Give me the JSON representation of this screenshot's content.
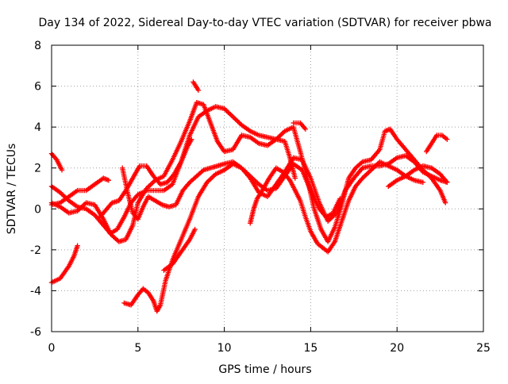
{
  "chart_data": {
    "type": "scatter",
    "title": "Day 134 of 2022, Sidereal Day-to-day VTEC variation (SDTVAR) for receiver pbwa",
    "xlabel": "GPS time / hours",
    "ylabel": "SDTVAR / TECUs",
    "xlim": [
      0,
      25
    ],
    "ylim": [
      -6,
      8
    ],
    "xticks": [
      "0",
      "5",
      "10",
      "15",
      "20",
      "25"
    ],
    "yticks": [
      "-6",
      "-4",
      "-2",
      "0",
      "2",
      "4",
      "6",
      "8"
    ],
    "grid": true,
    "marker": "+",
    "color": "#ff0000",
    "series": [
      {
        "points": [
          [
            0.0,
            2.7
          ],
          [
            0.3,
            2.4
          ],
          [
            0.6,
            1.9
          ]
        ]
      },
      {
        "points": [
          [
            0.0,
            -3.6
          ],
          [
            0.5,
            -3.4
          ],
          [
            1.0,
            -2.8
          ],
          [
            1.3,
            -2.3
          ],
          [
            1.5,
            -1.8
          ]
        ]
      },
      {
        "points": [
          [
            0.0,
            1.1
          ],
          [
            0.5,
            0.8
          ],
          [
            1.0,
            0.4
          ],
          [
            1.5,
            0.1
          ],
          [
            2.0,
            0.0
          ],
          [
            2.5,
            -0.3
          ],
          [
            3.0,
            -0.8
          ],
          [
            3.5,
            -1.3
          ],
          [
            3.9,
            -1.6
          ],
          [
            4.3,
            -1.5
          ],
          [
            4.7,
            -0.8
          ],
          [
            5.0,
            0.3
          ],
          [
            5.5,
            1.0
          ],
          [
            6.0,
            1.4
          ],
          [
            6.5,
            1.6
          ],
          [
            7.0,
            2.4
          ],
          [
            7.5,
            3.3
          ],
          [
            8.0,
            4.3
          ],
          [
            8.4,
            5.2
          ],
          [
            8.8,
            5.1
          ],
          [
            9.2,
            4.2
          ],
          [
            9.6,
            3.3
          ],
          [
            10.0,
            2.8
          ],
          [
            10.5,
            2.9
          ],
          [
            11.0,
            3.6
          ],
          [
            11.5,
            3.5
          ],
          [
            12.0,
            3.2
          ],
          [
            12.5,
            3.1
          ],
          [
            13.0,
            3.4
          ],
          [
            13.5,
            3.8
          ],
          [
            14.0,
            4.0
          ],
          [
            14.4,
            2.8
          ],
          [
            14.8,
            1.5
          ],
          [
            15.2,
            0.0
          ],
          [
            15.6,
            -1.0
          ],
          [
            16.0,
            -1.6
          ],
          [
            16.4,
            -0.9
          ],
          [
            16.8,
            0.2
          ],
          [
            17.2,
            1.5
          ],
          [
            17.6,
            2.0
          ],
          [
            18.0,
            2.3
          ],
          [
            18.5,
            2.4
          ],
          [
            19.0,
            2.9
          ],
          [
            19.3,
            3.8
          ],
          [
            19.6,
            3.9
          ],
          [
            20.0,
            3.4
          ],
          [
            20.5,
            2.9
          ],
          [
            21.0,
            2.4
          ],
          [
            21.5,
            1.9
          ],
          [
            22.0,
            1.5
          ],
          [
            22.5,
            0.9
          ],
          [
            22.8,
            0.3
          ]
        ]
      },
      {
        "points": [
          [
            0.0,
            0.2
          ],
          [
            0.5,
            0.3
          ],
          [
            1.0,
            0.6
          ],
          [
            1.5,
            0.9
          ],
          [
            2.0,
            0.9
          ],
          [
            2.5,
            1.2
          ],
          [
            3.0,
            1.5
          ],
          [
            3.3,
            1.4
          ]
        ]
      },
      {
        "points": [
          [
            0.0,
            0.3
          ],
          [
            0.5,
            0.1
          ],
          [
            1.0,
            -0.2
          ],
          [
            1.5,
            -0.1
          ],
          [
            2.0,
            0.3
          ],
          [
            2.5,
            0.2
          ],
          [
            3.0,
            -0.5
          ],
          [
            3.4,
            -1.2
          ],
          [
            3.8,
            -1.0
          ],
          [
            4.2,
            -0.4
          ],
          [
            4.6,
            0.3
          ],
          [
            5.0,
            0.7
          ],
          [
            5.5,
            0.9
          ],
          [
            6.0,
            0.9
          ],
          [
            6.5,
            0.9
          ],
          [
            7.0,
            1.2
          ],
          [
            7.5,
            2.3
          ],
          [
            8.0,
            3.6
          ],
          [
            8.5,
            4.5
          ],
          [
            9.0,
            4.8
          ],
          [
            9.5,
            5.0
          ],
          [
            10.0,
            4.9
          ],
          [
            10.5,
            4.5
          ],
          [
            11.0,
            4.1
          ],
          [
            11.5,
            3.8
          ],
          [
            12.0,
            3.6
          ],
          [
            12.5,
            3.5
          ],
          [
            13.0,
            3.4
          ],
          [
            13.5,
            3.3
          ],
          [
            13.8,
            2.5
          ],
          [
            14.1,
            1.5
          ]
        ]
      },
      {
        "points": [
          [
            4.1,
            2.0
          ],
          [
            4.4,
            0.8
          ],
          [
            4.7,
            -0.2
          ],
          [
            5.0,
            -0.5
          ],
          [
            5.3,
            0.1
          ],
          [
            5.6,
            0.6
          ],
          [
            6.0,
            0.4
          ],
          [
            6.4,
            0.2
          ],
          [
            6.8,
            0.1
          ],
          [
            7.2,
            0.2
          ],
          [
            7.6,
            0.9
          ],
          [
            8.0,
            1.3
          ],
          [
            8.4,
            1.6
          ],
          [
            8.8,
            1.9
          ],
          [
            9.2,
            2.0
          ],
          [
            9.6,
            2.1
          ],
          [
            10.0,
            2.2
          ],
          [
            10.5,
            2.3
          ],
          [
            11.0,
            2.0
          ],
          [
            11.5,
            1.6
          ],
          [
            12.0,
            1.2
          ],
          [
            12.5,
            0.9
          ],
          [
            13.0,
            1.0
          ],
          [
            13.5,
            1.6
          ],
          [
            14.0,
            2.2
          ],
          [
            14.5,
            1.9
          ],
          [
            15.0,
            0.9
          ],
          [
            15.5,
            0.0
          ],
          [
            15.9,
            -0.4
          ],
          [
            16.3,
            -0.2
          ],
          [
            16.7,
            0.5
          ]
        ]
      },
      {
        "points": [
          [
            2.8,
            -0.4
          ],
          [
            3.1,
            -0.1
          ],
          [
            3.5,
            0.3
          ],
          [
            3.9,
            0.4
          ],
          [
            4.3,
            0.9
          ],
          [
            4.7,
            1.5
          ],
          [
            5.1,
            2.1
          ],
          [
            5.5,
            2.1
          ],
          [
            5.9,
            1.6
          ],
          [
            6.3,
            1.2
          ],
          [
            6.7,
            1.3
          ],
          [
            7.1,
            1.7
          ],
          [
            7.5,
            2.3
          ],
          [
            7.9,
            3.1
          ],
          [
            8.1,
            3.4
          ]
        ]
      },
      {
        "points": [
          [
            4.2,
            -4.6
          ],
          [
            4.6,
            -4.7
          ],
          [
            5.0,
            -4.2
          ],
          [
            5.3,
            -3.9
          ],
          [
            5.6,
            -4.1
          ],
          [
            5.9,
            -4.5
          ],
          [
            6.1,
            -5.0
          ],
          [
            6.3,
            -4.7
          ],
          [
            6.6,
            -3.5
          ],
          [
            7.0,
            -2.5
          ],
          [
            7.5,
            -1.5
          ],
          [
            8.0,
            -0.5
          ],
          [
            8.5,
            0.6
          ],
          [
            9.0,
            1.3
          ],
          [
            9.5,
            1.7
          ],
          [
            10.0,
            1.9
          ],
          [
            10.5,
            2.2
          ],
          [
            11.0,
            2.0
          ],
          [
            11.5,
            1.5
          ],
          [
            12.0,
            0.8
          ],
          [
            12.5,
            0.6
          ],
          [
            13.0,
            1.2
          ],
          [
            13.5,
            1.8
          ],
          [
            14.0,
            2.5
          ],
          [
            14.5,
            2.4
          ],
          [
            15.0,
            1.5
          ],
          [
            15.5,
            0.3
          ],
          [
            16.0,
            -0.6
          ],
          [
            16.5,
            -0.2
          ],
          [
            17.0,
            0.9
          ],
          [
            17.5,
            1.5
          ],
          [
            18.0,
            2.0
          ],
          [
            18.5,
            2.1
          ],
          [
            19.0,
            2.1
          ],
          [
            19.5,
            2.2
          ],
          [
            20.0,
            2.5
          ],
          [
            20.5,
            2.6
          ],
          [
            21.0,
            2.3
          ],
          [
            21.5,
            1.8
          ],
          [
            22.0,
            1.6
          ],
          [
            22.5,
            1.4
          ],
          [
            22.9,
            1.3
          ]
        ]
      },
      {
        "points": [
          [
            6.5,
            -3.0
          ],
          [
            7.0,
            -2.7
          ],
          [
            7.5,
            -2.1
          ],
          [
            8.0,
            -1.5
          ],
          [
            8.3,
            -1.0
          ]
        ]
      },
      {
        "points": [
          [
            8.2,
            6.2
          ],
          [
            8.5,
            5.8
          ]
        ]
      },
      {
        "points": [
          [
            11.5,
            -0.7
          ],
          [
            11.7,
            0.0
          ],
          [
            11.9,
            0.5
          ],
          [
            12.2,
            0.9
          ],
          [
            12.6,
            1.5
          ],
          [
            13.0,
            2.0
          ],
          [
            13.4,
            1.8
          ],
          [
            13.8,
            1.4
          ],
          [
            14.1,
            0.9
          ],
          [
            14.4,
            0.4
          ],
          [
            14.7,
            -0.4
          ],
          [
            15.0,
            -1.1
          ],
          [
            15.4,
            -1.7
          ],
          [
            15.7,
            -1.9
          ],
          [
            16.0,
            -2.1
          ],
          [
            16.4,
            -1.6
          ],
          [
            16.8,
            -0.6
          ],
          [
            17.2,
            0.4
          ],
          [
            17.6,
            1.1
          ],
          [
            18.0,
            1.5
          ],
          [
            18.5,
            1.9
          ],
          [
            19.0,
            2.3
          ],
          [
            19.5,
            2.1
          ],
          [
            20.0,
            1.9
          ],
          [
            20.5,
            1.6
          ],
          [
            21.0,
            1.4
          ],
          [
            21.5,
            1.3
          ]
        ]
      },
      {
        "points": [
          [
            19.5,
            1.1
          ],
          [
            20.0,
            1.4
          ],
          [
            20.5,
            1.6
          ],
          [
            21.0,
            1.9
          ],
          [
            21.5,
            2.1
          ],
          [
            22.0,
            2.0
          ],
          [
            22.5,
            1.7
          ],
          [
            22.9,
            1.3
          ]
        ]
      },
      {
        "points": [
          [
            21.7,
            2.8
          ],
          [
            22.0,
            3.2
          ],
          [
            22.3,
            3.6
          ],
          [
            22.6,
            3.6
          ],
          [
            22.9,
            3.4
          ]
        ]
      },
      {
        "points": [
          [
            14.0,
            4.2
          ],
          [
            14.4,
            4.2
          ],
          [
            14.7,
            3.9
          ]
        ]
      }
    ]
  }
}
